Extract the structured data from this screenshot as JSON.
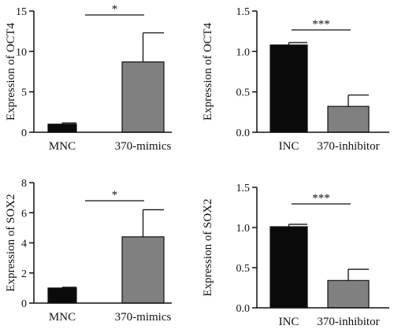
{
  "colors": {
    "axis": "#111111",
    "black_bar": "#0a0a0a",
    "grey_bar": "#808080"
  },
  "chart_data": [
    {
      "type": "bar",
      "ylabel": "Expression of OCT4",
      "categories": [
        "MNC",
        "370-mimics"
      ],
      "values": [
        1.0,
        8.7
      ],
      "errors": [
        0.15,
        3.6
      ],
      "bar_colors": [
        "#0a0a0a",
        "#808080"
      ],
      "ylim": [
        0,
        15
      ],
      "yticks": [
        0,
        5,
        10,
        15
      ],
      "ytick_labels": [
        "0",
        "5",
        "10",
        "15"
      ],
      "significance": "*",
      "grid": false
    },
    {
      "type": "bar",
      "ylabel": "Expression of OCT4",
      "categories": [
        "INC",
        "370-inhibitor"
      ],
      "values": [
        1.08,
        0.32
      ],
      "errors": [
        0.03,
        0.14
      ],
      "bar_colors": [
        "#0a0a0a",
        "#808080"
      ],
      "ylim": [
        0,
        1.5
      ],
      "yticks": [
        0,
        0.5,
        1.0,
        1.5
      ],
      "ytick_labels": [
        "0.0",
        "0.5",
        "1.0",
        "1.5"
      ],
      "significance": "***",
      "grid": false
    },
    {
      "type": "bar",
      "ylabel": "Expression of SOX2",
      "categories": [
        "MNC",
        "370-mimics"
      ],
      "values": [
        1.0,
        4.4
      ],
      "errors": [
        0.05,
        1.8
      ],
      "bar_colors": [
        "#0a0a0a",
        "#808080"
      ],
      "ylim": [
        0,
        8
      ],
      "yticks": [
        0,
        2,
        4,
        6,
        8
      ],
      "ytick_labels": [
        "0",
        "2",
        "4",
        "6",
        "8"
      ],
      "significance": "*",
      "grid": false
    },
    {
      "type": "bar",
      "ylabel": "Expression of SOX2",
      "categories": [
        "INC",
        "370-inhibitor"
      ],
      "values": [
        1.01,
        0.34
      ],
      "errors": [
        0.03,
        0.14
      ],
      "bar_colors": [
        "#0a0a0a",
        "#808080"
      ],
      "ylim": [
        0,
        1.5
      ],
      "yticks": [
        0,
        0.5,
        1.0,
        1.5
      ],
      "ytick_labels": [
        "0.0",
        "0.5",
        "1.0",
        "1.5"
      ],
      "significance": "***",
      "grid": false
    }
  ]
}
